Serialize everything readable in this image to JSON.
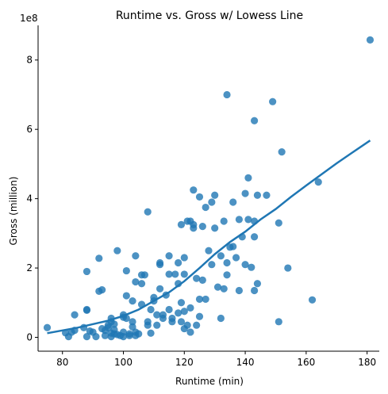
{
  "chart_data": {
    "type": "scatter",
    "title": "Runtime vs. Gross w/ Lowess Line",
    "xlabel": "Runtime (min)",
    "ylabel": "Gross (million)",
    "y_offset_label": "1e8",
    "xlim": [
      72,
      184
    ],
    "ylim": [
      -40000000.0,
      900000000.0
    ],
    "x_ticks": [
      80,
      100,
      120,
      140,
      160,
      180
    ],
    "y_ticks": [
      0,
      200000000.0,
      400000000.0,
      600000000.0,
      800000000.0
    ],
    "x_tick_labels": [
      "80",
      "100",
      "120",
      "140",
      "160",
      "180"
    ],
    "y_tick_labels": [
      "0",
      "2",
      "4",
      "6",
      "8"
    ],
    "grid": false,
    "point_color": "#1f77b4",
    "line_color": "#1f77b4",
    "points": [
      {
        "x": 75,
        "y": 28000000.0
      },
      {
        "x": 81,
        "y": 13000000.0
      },
      {
        "x": 82,
        "y": 2000000.0
      },
      {
        "x": 83,
        "y": 15000000.0
      },
      {
        "x": 84,
        "y": 65000000.0
      },
      {
        "x": 84,
        "y": 20000000.0
      },
      {
        "x": 87,
        "y": 28000000.0
      },
      {
        "x": 88,
        "y": 78000000.0
      },
      {
        "x": 88,
        "y": 80000000.0
      },
      {
        "x": 88,
        "y": 190000000.0
      },
      {
        "x": 88,
        "y": 2000000.0
      },
      {
        "x": 89,
        "y": 18000000.0
      },
      {
        "x": 90,
        "y": 15000000.0
      },
      {
        "x": 91,
        "y": 2000000.0
      },
      {
        "x": 92,
        "y": 228000000.0
      },
      {
        "x": 92,
        "y": 133000000.0
      },
      {
        "x": 93,
        "y": 137000000.0
      },
      {
        "x": 93,
        "y": 25000000.0
      },
      {
        "x": 94,
        "y": 20000000.0
      },
      {
        "x": 94,
        "y": 5000000.0
      },
      {
        "x": 95,
        "y": 35000000.0
      },
      {
        "x": 95,
        "y": 28000000.0
      },
      {
        "x": 96,
        "y": 45000000.0
      },
      {
        "x": 96,
        "y": 55000000.0
      },
      {
        "x": 96,
        "y": 12000000.0
      },
      {
        "x": 96,
        "y": 2000000.0
      },
      {
        "x": 97,
        "y": 38000000.0
      },
      {
        "x": 97,
        "y": 22000000.0
      },
      {
        "x": 97,
        "y": 10000000.0
      },
      {
        "x": 98,
        "y": 250000000.0
      },
      {
        "x": 98,
        "y": 8000000.0
      },
      {
        "x": 99,
        "y": 5000000.0
      },
      {
        "x": 100,
        "y": 65000000.0
      },
      {
        "x": 100,
        "y": 58000000.0
      },
      {
        "x": 100,
        "y": 15000000.0
      },
      {
        "x": 100,
        "y": 2000000.0
      },
      {
        "x": 101,
        "y": 192000000.0
      },
      {
        "x": 101,
        "y": 120000000.0
      },
      {
        "x": 101,
        "y": 55000000.0
      },
      {
        "x": 102,
        "y": 10000000.0
      },
      {
        "x": 102,
        "y": 5000000.0
      },
      {
        "x": 103,
        "y": 105000000.0
      },
      {
        "x": 103,
        "y": 45000000.0
      },
      {
        "x": 103,
        "y": 30000000.0
      },
      {
        "x": 104,
        "y": 235000000.0
      },
      {
        "x": 104,
        "y": 160000000.0
      },
      {
        "x": 104,
        "y": 15000000.0
      },
      {
        "x": 104,
        "y": 5000000.0
      },
      {
        "x": 105,
        "y": 10000000.0
      },
      {
        "x": 106,
        "y": 180000000.0
      },
      {
        "x": 106,
        "y": 155000000.0
      },
      {
        "x": 106,
        "y": 95000000.0
      },
      {
        "x": 107,
        "y": 180000000.0
      },
      {
        "x": 108,
        "y": 362000000.0
      },
      {
        "x": 108,
        "y": 45000000.0
      },
      {
        "x": 108,
        "y": 35000000.0
      },
      {
        "x": 109,
        "y": 80000000.0
      },
      {
        "x": 109,
        "y": 12000000.0
      },
      {
        "x": 110,
        "y": 115000000.0
      },
      {
        "x": 110,
        "y": 105000000.0
      },
      {
        "x": 111,
        "y": 65000000.0
      },
      {
        "x": 111,
        "y": 35000000.0
      },
      {
        "x": 112,
        "y": 210000000.0
      },
      {
        "x": 112,
        "y": 215000000.0
      },
      {
        "x": 112,
        "y": 140000000.0
      },
      {
        "x": 113,
        "y": 55000000.0
      },
      {
        "x": 113,
        "y": 65000000.0
      },
      {
        "x": 114,
        "y": 122000000.0
      },
      {
        "x": 115,
        "y": 235000000.0
      },
      {
        "x": 115,
        "y": 182000000.0
      },
      {
        "x": 115,
        "y": 80000000.0
      },
      {
        "x": 116,
        "y": 45000000.0
      },
      {
        "x": 116,
        "y": 55000000.0
      },
      {
        "x": 117,
        "y": 182000000.0
      },
      {
        "x": 118,
        "y": 215000000.0
      },
      {
        "x": 118,
        "y": 155000000.0
      },
      {
        "x": 118,
        "y": 70000000.0
      },
      {
        "x": 119,
        "y": 325000000.0
      },
      {
        "x": 119,
        "y": 100000000.0
      },
      {
        "x": 119,
        "y": 45000000.0
      },
      {
        "x": 120,
        "y": 230000000.0
      },
      {
        "x": 120,
        "y": 182000000.0
      },
      {
        "x": 120,
        "y": 75000000.0
      },
      {
        "x": 120,
        "y": 25000000.0
      },
      {
        "x": 121,
        "y": 335000000.0
      },
      {
        "x": 121,
        "y": 35000000.0
      },
      {
        "x": 122,
        "y": 335000000.0
      },
      {
        "x": 122,
        "y": 85000000.0
      },
      {
        "x": 122,
        "y": 15000000.0
      },
      {
        "x": 123,
        "y": 425000000.0
      },
      {
        "x": 123,
        "y": 325000000.0
      },
      {
        "x": 123,
        "y": 315000000.0
      },
      {
        "x": 124,
        "y": 170000000.0
      },
      {
        "x": 124,
        "y": 35000000.0
      },
      {
        "x": 125,
        "y": 405000000.0
      },
      {
        "x": 125,
        "y": 110000000.0
      },
      {
        "x": 125,
        "y": 60000000.0
      },
      {
        "x": 126,
        "y": 320000000.0
      },
      {
        "x": 126,
        "y": 165000000.0
      },
      {
        "x": 127,
        "y": 375000000.0
      },
      {
        "x": 127,
        "y": 110000000.0
      },
      {
        "x": 128,
        "y": 250000000.0
      },
      {
        "x": 129,
        "y": 390000000.0
      },
      {
        "x": 129,
        "y": 210000000.0
      },
      {
        "x": 130,
        "y": 410000000.0
      },
      {
        "x": 130,
        "y": 315000000.0
      },
      {
        "x": 131,
        "y": 145000000.0
      },
      {
        "x": 132,
        "y": 235000000.0
      },
      {
        "x": 132,
        "y": 55000000.0
      },
      {
        "x": 133,
        "y": 335000000.0
      },
      {
        "x": 133,
        "y": 140000000.0
      },
      {
        "x": 134,
        "y": 700000000.0
      },
      {
        "x": 134,
        "y": 215000000.0
      },
      {
        "x": 134,
        "y": 180000000.0
      },
      {
        "x": 135,
        "y": 260000000.0
      },
      {
        "x": 136,
        "y": 390000000.0
      },
      {
        "x": 136,
        "y": 262000000.0
      },
      {
        "x": 137,
        "y": 230000000.0
      },
      {
        "x": 138,
        "y": 340000000.0
      },
      {
        "x": 138,
        "y": 135000000.0
      },
      {
        "x": 139,
        "y": 290000000.0
      },
      {
        "x": 140,
        "y": 415000000.0
      },
      {
        "x": 140,
        "y": 210000000.0
      },
      {
        "x": 141,
        "y": 460000000.0
      },
      {
        "x": 141,
        "y": 340000000.0
      },
      {
        "x": 142,
        "y": 202000000.0
      },
      {
        "x": 143,
        "y": 625000000.0
      },
      {
        "x": 143,
        "y": 335000000.0
      },
      {
        "x": 143,
        "y": 290000000.0
      },
      {
        "x": 143,
        "y": 135000000.0
      },
      {
        "x": 144,
        "y": 410000000.0
      },
      {
        "x": 144,
        "y": 155000000.0
      },
      {
        "x": 147,
        "y": 410000000.0
      },
      {
        "x": 149,
        "y": 680000000.0
      },
      {
        "x": 151,
        "y": 330000000.0
      },
      {
        "x": 151,
        "y": 45000000.0
      },
      {
        "x": 152,
        "y": 535000000.0
      },
      {
        "x": 154,
        "y": 200000000.0
      },
      {
        "x": 162,
        "y": 108000000.0
      },
      {
        "x": 164,
        "y": 448000000.0
      },
      {
        "x": 181,
        "y": 858000000.0
      }
    ],
    "lowess": [
      {
        "x": 75,
        "y": 12000000.0
      },
      {
        "x": 85,
        "y": 28000000.0
      },
      {
        "x": 95,
        "y": 48000000.0
      },
      {
        "x": 100,
        "y": 62000000.0
      },
      {
        "x": 105,
        "y": 80000000.0
      },
      {
        "x": 110,
        "y": 105000000.0
      },
      {
        "x": 115,
        "y": 130000000.0
      },
      {
        "x": 120,
        "y": 162000000.0
      },
      {
        "x": 125,
        "y": 200000000.0
      },
      {
        "x": 130,
        "y": 240000000.0
      },
      {
        "x": 135,
        "y": 275000000.0
      },
      {
        "x": 140,
        "y": 305000000.0
      },
      {
        "x": 145,
        "y": 340000000.0
      },
      {
        "x": 150,
        "y": 370000000.0
      },
      {
        "x": 155,
        "y": 405000000.0
      },
      {
        "x": 160,
        "y": 438000000.0
      },
      {
        "x": 165,
        "y": 470000000.0
      },
      {
        "x": 170,
        "y": 502000000.0
      },
      {
        "x": 175,
        "y": 532000000.0
      },
      {
        "x": 181,
        "y": 568000000.0
      }
    ]
  }
}
